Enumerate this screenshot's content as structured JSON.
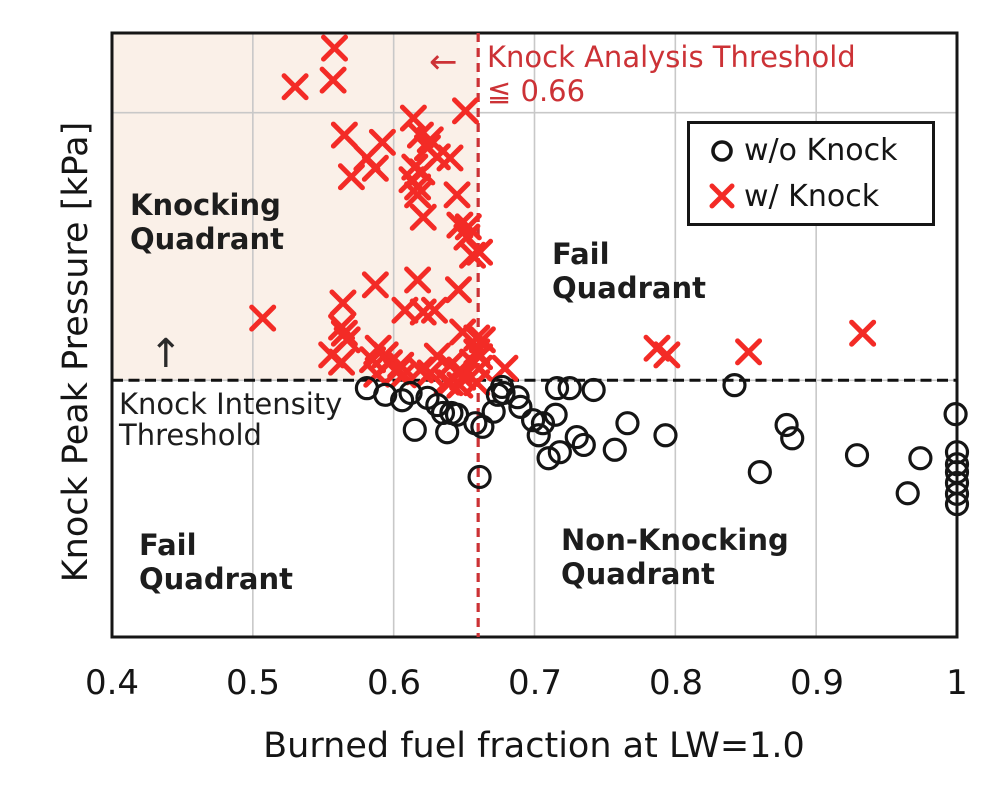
{
  "axes": {
    "x": {
      "title": "Burned fuel fraction at LW=1.0",
      "ticks": [
        "0.4",
        "0.5",
        "0.6",
        "0.7",
        "0.8",
        "0.9",
        "1"
      ],
      "tick_values": [
        0.4,
        0.5,
        0.6,
        0.7,
        0.8,
        0.9,
        1.0
      ],
      "range": [
        0.4,
        1.0
      ]
    },
    "y": {
      "title": "Knock Peak Pressure [kPa]",
      "ticks": []
    }
  },
  "annotations": {
    "knock_analysis_threshold": {
      "arrow": "←",
      "line1": "Knock Analysis Threshold",
      "line2": "≦ 0.66",
      "value": 0.66,
      "color": "#cc3236"
    },
    "knock_intensity_threshold": {
      "arrow": "↑",
      "line1": "Knock Intensity",
      "line2": "Threshold"
    },
    "quadrants": {
      "top_left": [
        "Knocking",
        "Quadrant"
      ],
      "top_right": [
        "Fail",
        "Quadrant"
      ],
      "bottom_left": [
        "Fail",
        "Quadrant"
      ],
      "bottom_right": [
        "Non-Knocking",
        "Quadrant"
      ]
    }
  },
  "legend": {
    "items": [
      {
        "label": "w/o Knock",
        "marker": "circle",
        "color": "#151515"
      },
      {
        "label": "w/ Knock",
        "marker": "x",
        "color": "#f32b26"
      }
    ]
  },
  "colors": {
    "knock_marker": "#f32b26",
    "no_knock_marker": "#151515",
    "threshold_red": "#cc3236",
    "threshold_black": "#111111",
    "knocking_region_fill": "#faf0e8",
    "gridline": "#c8c8c8",
    "plot_border": "#161616"
  },
  "chart_data": {
    "type": "scatter",
    "xlabel": "Burned fuel fraction at LW=1.0",
    "ylabel": "Knock Peak Pressure [kPa]",
    "xlim": [
      0.4,
      1.0
    ],
    "x_ticks": [
      0.4,
      0.5,
      0.6,
      0.7,
      0.8,
      0.9,
      1.0
    ],
    "y_axis_note": "y axis unlabeled in figure; values below are relative units 0-100",
    "ylim_units": [
      0,
      100
    ],
    "y_gridlines_units": [
      86.8,
      42.5
    ],
    "knock_analysis_threshold_x": 0.66,
    "knock_intensity_threshold_y_units": 42.5,
    "shaded_knocking_region": {
      "x": [
        0.4,
        0.66
      ],
      "y_units": [
        42.5,
        100
      ]
    },
    "grid": true,
    "legend_position": "upper right",
    "series": [
      {
        "name": "w/ Knock",
        "marker": "x",
        "color": "#f32b26",
        "points": [
          [
            0.558,
            97.5
          ],
          [
            0.557,
            92.2
          ],
          [
            0.53,
            91.1
          ],
          [
            0.614,
            85.9
          ],
          [
            0.651,
            87.1
          ],
          [
            0.565,
            83.1
          ],
          [
            0.592,
            81.9
          ],
          [
            0.581,
            79.3
          ],
          [
            0.57,
            76.2
          ],
          [
            0.587,
            77.6
          ],
          [
            0.619,
            83.1
          ],
          [
            0.626,
            82.3
          ],
          [
            0.624,
            81.0
          ],
          [
            0.631,
            79.5
          ],
          [
            0.64,
            79.3
          ],
          [
            0.615,
            77.8
          ],
          [
            0.62,
            77.0
          ],
          [
            0.613,
            75.7
          ],
          [
            0.617,
            74.5
          ],
          [
            0.617,
            73.2
          ],
          [
            0.645,
            73.2
          ],
          [
            0.621,
            69.5
          ],
          [
            0.647,
            68.2
          ],
          [
            0.653,
            67.9
          ],
          [
            0.652,
            66.2
          ],
          [
            0.656,
            63.2
          ],
          [
            0.661,
            63.7
          ],
          [
            0.587,
            58.3
          ],
          [
            0.617,
            59.1
          ],
          [
            0.564,
            55.3
          ],
          [
            0.608,
            54.1
          ],
          [
            0.621,
            53.8
          ],
          [
            0.629,
            54.1
          ],
          [
            0.646,
            57.5
          ],
          [
            0.563,
            51.3
          ],
          [
            0.565,
            50.3
          ],
          [
            0.567,
            49.2
          ],
          [
            0.649,
            50.5
          ],
          [
            0.659,
            49.5
          ],
          [
            0.663,
            49.2
          ],
          [
            0.556,
            46.7
          ],
          [
            0.563,
            45.5
          ],
          [
            0.589,
            47.8
          ],
          [
            0.594,
            46.7
          ],
          [
            0.585,
            45.9
          ],
          [
            0.597,
            45.4
          ],
          [
            0.605,
            45.0
          ],
          [
            0.602,
            43.9
          ],
          [
            0.607,
            43.4
          ],
          [
            0.631,
            46.5
          ],
          [
            0.64,
            45.0
          ],
          [
            0.647,
            44.2
          ],
          [
            0.656,
            45.5
          ],
          [
            0.659,
            47.2
          ],
          [
            0.661,
            44.5
          ],
          [
            0.619,
            44.2
          ],
          [
            0.626,
            43.7
          ],
          [
            0.661,
            46.4
          ],
          [
            0.679,
            44.5
          ],
          [
            0.507,
            52.8
          ],
          [
            0.787,
            47.8
          ],
          [
            0.794,
            46.7
          ],
          [
            0.852,
            47.2
          ],
          [
            0.933,
            50.3
          ],
          [
            0.638,
            42.2
          ],
          [
            0.649,
            43.0
          ],
          [
            0.659,
            42.1
          ],
          [
            0.64,
            42.1
          ],
          [
            0.647,
            41.7
          ],
          [
            0.588,
            43.5
          ]
        ]
      },
      {
        "name": "w/o Knock",
        "marker": "circle",
        "color": "#151515",
        "points": [
          [
            0.581,
            41.2
          ],
          [
            0.594,
            40.1
          ],
          [
            0.606,
            39.2
          ],
          [
            0.612,
            40.4
          ],
          [
            0.624,
            39.6
          ],
          [
            0.631,
            38.4
          ],
          [
            0.635,
            37.1
          ],
          [
            0.641,
            37.1
          ],
          [
            0.645,
            36.8
          ],
          [
            0.638,
            33.9
          ],
          [
            0.615,
            34.3
          ],
          [
            0.658,
            35.4
          ],
          [
            0.663,
            34.8
          ],
          [
            0.671,
            37.3
          ],
          [
            0.674,
            40.1
          ],
          [
            0.678,
            40.4
          ],
          [
            0.688,
            39.7
          ],
          [
            0.69,
            38.1
          ],
          [
            0.699,
            35.9
          ],
          [
            0.706,
            35.4
          ],
          [
            0.716,
            41.2
          ],
          [
            0.725,
            41.2
          ],
          [
            0.703,
            33.4
          ],
          [
            0.71,
            29.6
          ],
          [
            0.718,
            30.6
          ],
          [
            0.73,
            33.1
          ],
          [
            0.735,
            31.8
          ],
          [
            0.661,
            26.5
          ],
          [
            0.677,
            41.4
          ],
          [
            0.742,
            40.9
          ],
          [
            0.766,
            35.4
          ],
          [
            0.757,
            31.0
          ],
          [
            0.793,
            33.4
          ],
          [
            0.842,
            41.7
          ],
          [
            0.879,
            35.1
          ],
          [
            0.883,
            32.9
          ],
          [
            0.86,
            27.3
          ],
          [
            0.929,
            30.1
          ],
          [
            0.974,
            29.6
          ],
          [
            0.965,
            23.8
          ],
          [
            0.999,
            36.9
          ],
          [
            1.0,
            30.6
          ],
          [
            1.0,
            28.6
          ],
          [
            1.0,
            27.3
          ],
          [
            1.0,
            25.5
          ],
          [
            1.0,
            23.7
          ],
          [
            1.0,
            22.0
          ],
          [
            0.715,
            36.8
          ]
        ]
      }
    ]
  }
}
